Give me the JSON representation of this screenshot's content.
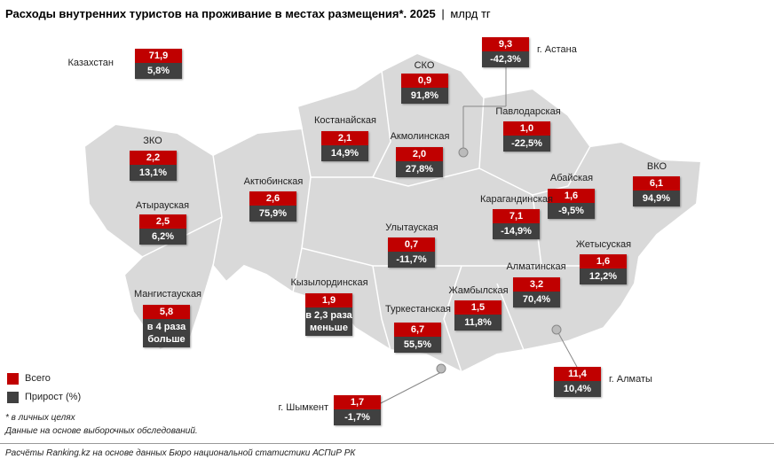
{
  "header": {
    "title": "Расходы внутренних туристов на проживание в местах размещения*. 2025",
    "unit": "млрд тг"
  },
  "regions": [
    {
      "name": "Казахстан",
      "total": "71,9",
      "growth": "5,8%"
    },
    {
      "name": "СКО",
      "total": "0,9",
      "growth": "91,8%"
    },
    {
      "name": "г. Астана",
      "total": "9,3",
      "growth": "-42,3%"
    },
    {
      "name": "Павлодарская",
      "total": "1,0",
      "growth": "-22,5%"
    },
    {
      "name": "Костанайская",
      "total": "2,1",
      "growth": "14,9%"
    },
    {
      "name": "Акмолинская",
      "total": "2,0",
      "growth": "27,8%"
    },
    {
      "name": "ЗКО",
      "total": "2,2",
      "growth": "13,1%"
    },
    {
      "name": "Абайская",
      "total": "1,6",
      "growth": "-9,5%"
    },
    {
      "name": "ВКО",
      "total": "6,1",
      "growth": "94,9%"
    },
    {
      "name": "Актюбинская",
      "total": "2,6",
      "growth": "75,9%"
    },
    {
      "name": "Атырауская",
      "total": "2,5",
      "growth": "6,2%"
    },
    {
      "name": "Карагандинская",
      "total": "7,1",
      "growth": "-14,9%"
    },
    {
      "name": "Улытауская",
      "total": "0,7",
      "growth": "-11,7%"
    },
    {
      "name": "Жетысуская",
      "total": "1,6",
      "growth": "12,2%"
    },
    {
      "name": "Алматинская",
      "total": "3,2",
      "growth": "70,4%"
    },
    {
      "name": "Мангистауская",
      "total": "5,8",
      "growth": "в 4 раза больше"
    },
    {
      "name": "Кызылординская",
      "total": "1,9",
      "growth": "в 2,3 раза меньше"
    },
    {
      "name": "Жамбылская",
      "total": "1,5",
      "growth": "11,8%"
    },
    {
      "name": "Туркестанская",
      "total": "6,7",
      "growth": "55,5%"
    },
    {
      "name": "г. Алматы",
      "total": "11,4",
      "growth": "10,4%"
    },
    {
      "name": "г. Шымкент",
      "total": "1,7",
      "growth": "-1,7%"
    }
  ],
  "legend": {
    "total": "Всего",
    "growth": "Прирост (%)"
  },
  "notes": [
    "* в личных целях",
    "Данные на основе выборочных обследований."
  ],
  "source": "Расчёты Ranking.kz на основе данных Бюро национальной статистики АСПиР РК"
}
